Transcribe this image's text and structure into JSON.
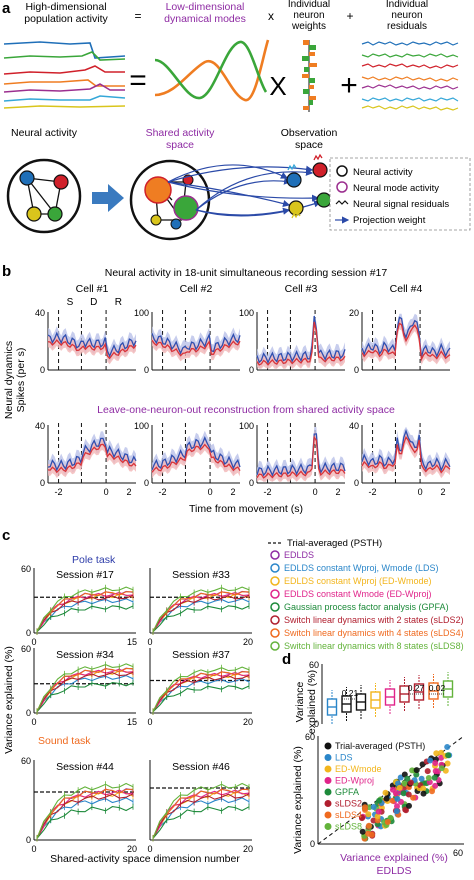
{
  "panels": {
    "a": "a",
    "b": "b",
    "c": "c",
    "d": "d"
  },
  "panel_a": {
    "high_dim_title": [
      "High-dimensional",
      "population activity"
    ],
    "equals": "=",
    "low_dim_title": [
      "Low-dimensional",
      "dynamical modes"
    ],
    "times": "x",
    "weights_title": [
      "Individual",
      "neuron",
      "weights"
    ],
    "plus": "+",
    "residuals_title": [
      "Individual",
      "neuron",
      "residuals"
    ],
    "big_equals": "=",
    "big_times": "X",
    "big_plus": "+",
    "neural_activity_label": "Neural activity",
    "shared_space_label": [
      "Shared activity",
      "space"
    ],
    "observation_space_label": [
      "Observation",
      "space"
    ],
    "legend": [
      "Neural activity",
      "Neural mode activity",
      "Neural signal residuals",
      "Projection weight"
    ],
    "colors": {
      "blue": "#1f6fb8",
      "green": "#3aa63a",
      "red": "#d0202a",
      "orange": "#ef7d22",
      "purple": "#9b2f8f",
      "cyan": "#35a7d8",
      "yellow": "#d9c51c",
      "arrow": "#3a7abf"
    }
  },
  "panel_b": {
    "title": "Neural activity in 18-unit simultaneous recording session #17",
    "cells": [
      "Cell #1",
      "Cell #2",
      "Cell #3",
      "Cell #4"
    ],
    "epoch_labels": [
      "S",
      "D",
      "R"
    ],
    "subtitle": "Leave-one-neuron-out reconstruction from shared activity space",
    "ylabel": [
      "Neural dynamics",
      "Spikes (per s)"
    ],
    "xlabel": "Time from movement (s)",
    "top_yticks": [
      [
        "0",
        "40"
      ],
      [
        "0",
        "100"
      ],
      [
        "0",
        "100"
      ],
      [
        "0",
        "20"
      ]
    ],
    "bottom_yticks": [
      [
        "0",
        "40"
      ],
      [
        "0",
        "100"
      ],
      [
        "0",
        "100"
      ],
      [
        "0",
        "40"
      ]
    ],
    "xticks": [
      "-2",
      "0",
      "2"
    ],
    "colors": {
      "data": "#2f4fb0",
      "recon": "#d8343a",
      "data_band": "#b9c1e8",
      "recon_band": "#f2b7b7"
    }
  },
  "panel_c": {
    "legend_title_psth": "Trial-averaged (PSTH)",
    "legend": [
      {
        "text": "EDLDS",
        "color": "#8e2ba3"
      },
      {
        "text": "EDLDS constant Wproj, Wmode (LDS)",
        "color": "#2a86c9"
      },
      {
        "text": "EDLDS constant Wproj (ED-Wmode)",
        "color": "#f2b51c"
      },
      {
        "text": "EDLDS constant Wmode (ED-Wproj)",
        "color": "#e0248a"
      },
      {
        "text": "Gaussian process factor analysis (GPFA)",
        "color": "#1d8a3a"
      },
      {
        "text": "Switch linear dynamics with 2 states (sLDS2)",
        "color": "#b01e2e"
      },
      {
        "text": "Switch linear dynamics with 4 states (sLDS4)",
        "color": "#ef6a1f"
      },
      {
        "text": "Switch linear dynamics with 8 states (sLDS8)",
        "color": "#63b33b"
      }
    ],
    "pole_task": "Pole task",
    "sound_task": "Sound task",
    "sessions": [
      "Session #17",
      "Session #33",
      "Session #34",
      "Session #37",
      "Session #44",
      "Session #46"
    ],
    "ylabel": "Variance explained (%)",
    "xlabel": "Shared-activity space dimension number",
    "yticks": [
      "0",
      "60"
    ],
    "xticks_left": [
      "0",
      "15"
    ],
    "xticks_right": [
      "0",
      "20"
    ],
    "xticks_bottom_left": [
      "0",
      "20"
    ],
    "xticks_bottom_right": [
      "0",
      "20"
    ]
  },
  "panel_d": {
    "box_ylabel": [
      "Variance",
      "explained (%)"
    ],
    "box_yticks": [
      "0",
      "60"
    ],
    "p_values": [
      "0.21",
      "0.27",
      "0.02"
    ],
    "box_medians": [
      17,
      20,
      22,
      24,
      27,
      30,
      32,
      33,
      35
    ],
    "box_colors": [
      "#2a86c9",
      "#111111",
      "#111111",
      "#f2b51c",
      "#e0248a",
      "#b01e2e",
      "#b01e2e",
      "#ef6a1f",
      "#63b33b"
    ],
    "scatter_legend": [
      {
        "text": "Trial-averaged (PSTH)",
        "color": "#111111"
      },
      {
        "text": "LDS",
        "color": "#2a86c9"
      },
      {
        "text": "ED-Wmode",
        "color": "#f2b51c"
      },
      {
        "text": "ED-Wproj",
        "color": "#e0248a"
      },
      {
        "text": "GPFA",
        "color": "#1d8a3a"
      },
      {
        "text": "sLDS2",
        "color": "#b01e2e"
      },
      {
        "text": "sLDS4",
        "color": "#ef6a1f"
      },
      {
        "text": "sLDS8",
        "color": "#63b33b"
      }
    ],
    "scatter_ylabel": "Variance explained (%)",
    "scatter_xlabel": [
      "Variance explained (%)",
      "EDLDS"
    ],
    "scatter_ticks": [
      "0",
      "60"
    ]
  }
}
